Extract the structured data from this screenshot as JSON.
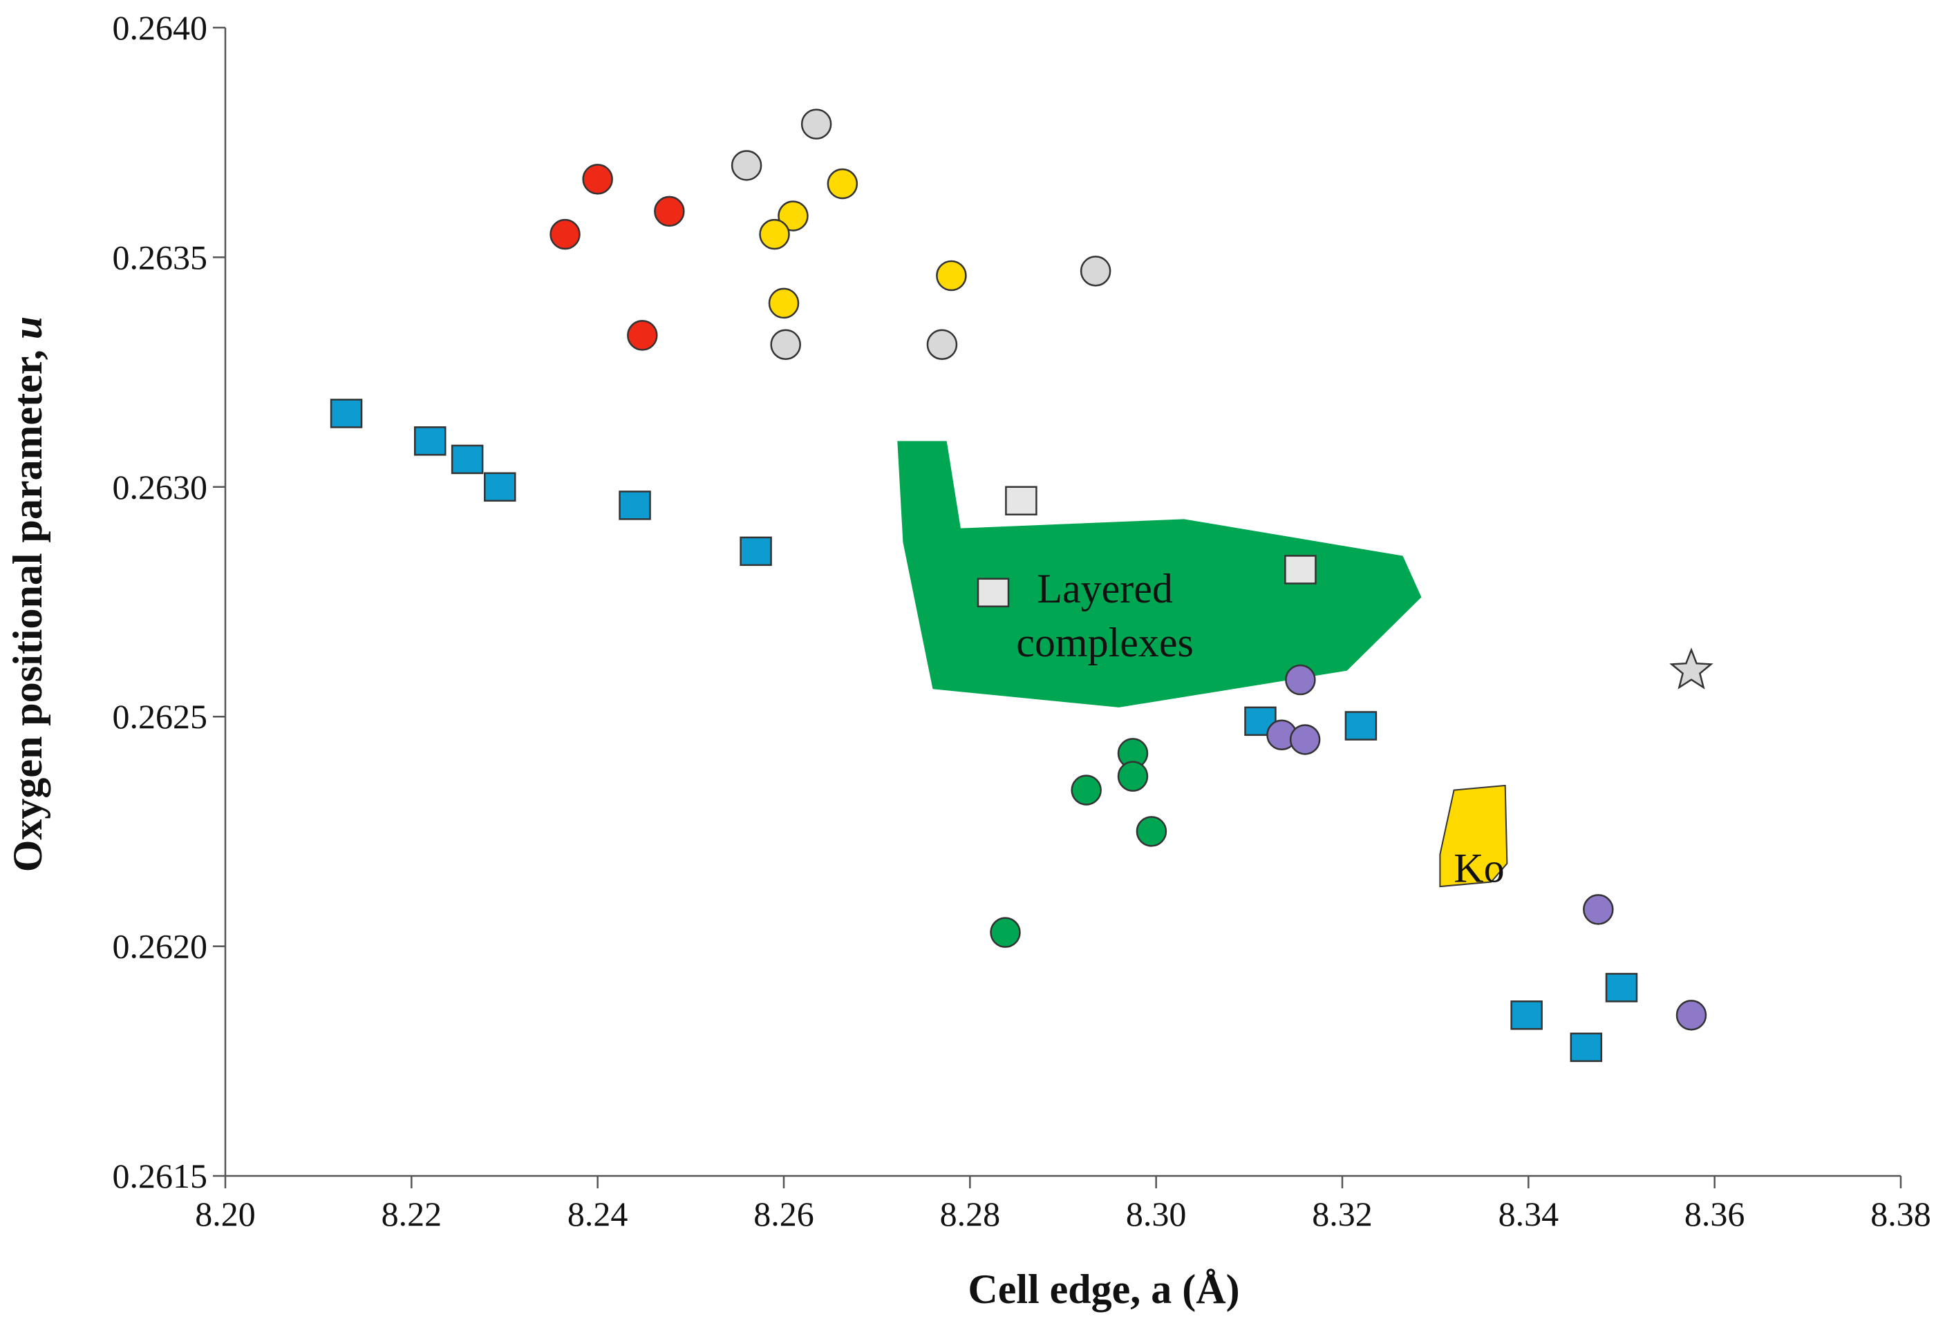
{
  "chart_data": {
    "type": "scatter",
    "title": "",
    "xlabel": "Cell edge, a (Å)",
    "ylabel_prefix": "Oxygen positional parameter, ",
    "ylabel_var": "u",
    "xlim": [
      8.2,
      8.38
    ],
    "ylim": [
      0.2615,
      0.264
    ],
    "xticks": [
      8.2,
      8.22,
      8.24,
      8.26,
      8.28,
      8.3,
      8.32,
      8.34,
      8.36,
      8.38
    ],
    "xtick_labels": [
      "8.20",
      "8.22",
      "8.24",
      "8.26",
      "8.28",
      "8.30",
      "8.32",
      "8.34",
      "8.36",
      "8.38"
    ],
    "yticks": [
      0.2615,
      0.262,
      0.2625,
      0.263,
      0.2635,
      0.264
    ],
    "ytick_labels": [
      "0.2615",
      "0.2620",
      "0.2625",
      "0.2630",
      "0.2635",
      "0.2640"
    ],
    "grid": false,
    "colors": {
      "red": "#ee2a16",
      "gray": "#d8d8d8",
      "yellow": "#ffda00",
      "blue": "#0e9bd0",
      "green": "#00a651",
      "purple": "#8e78c8",
      "lightgray_square": "#e6e6e6",
      "axis": "#555555"
    },
    "series": [
      {
        "name": "red-circles",
        "marker": "circle",
        "color": "#ee2a16",
        "points": [
          {
            "x": 8.2365,
            "y": 0.26355
          },
          {
            "x": 8.24,
            "y": 0.26367
          },
          {
            "x": 8.2477,
            "y": 0.2636
          },
          {
            "x": 8.2448,
            "y": 0.26333
          }
        ]
      },
      {
        "name": "gray-circles",
        "marker": "circle",
        "color": "#d8d8d8",
        "points": [
          {
            "x": 8.2635,
            "y": 0.26379
          },
          {
            "x": 8.256,
            "y": 0.2637
          },
          {
            "x": 8.2935,
            "y": 0.26347
          },
          {
            "x": 8.2602,
            "y": 0.26331
          },
          {
            "x": 8.277,
            "y": 0.26331
          }
        ]
      },
      {
        "name": "yellow-circles",
        "marker": "circle",
        "color": "#ffda00",
        "points": [
          {
            "x": 8.2663,
            "y": 0.26366
          },
          {
            "x": 8.261,
            "y": 0.26359
          },
          {
            "x": 8.259,
            "y": 0.26355
          },
          {
            "x": 8.278,
            "y": 0.26346
          },
          {
            "x": 8.26,
            "y": 0.2634
          }
        ]
      },
      {
        "name": "blue-squares",
        "marker": "square",
        "color": "#0e9bd0",
        "points": [
          {
            "x": 8.213,
            "y": 0.26316
          },
          {
            "x": 8.222,
            "y": 0.2631
          },
          {
            "x": 8.226,
            "y": 0.26306
          },
          {
            "x": 8.2295,
            "y": 0.263
          },
          {
            "x": 8.244,
            "y": 0.26296
          },
          {
            "x": 8.257,
            "y": 0.26286
          },
          {
            "x": 8.3112,
            "y": 0.26249
          },
          {
            "x": 8.322,
            "y": 0.26248
          },
          {
            "x": 8.3398,
            "y": 0.26185
          },
          {
            "x": 8.35,
            "y": 0.26191
          },
          {
            "x": 8.3462,
            "y": 0.26178
          }
        ]
      },
      {
        "name": "lightgray-squares",
        "marker": "square",
        "color": "#e6e6e6",
        "points": [
          {
            "x": 8.2855,
            "y": 0.26297
          },
          {
            "x": 8.2825,
            "y": 0.26277
          },
          {
            "x": 8.3155,
            "y": 0.26282
          }
        ]
      },
      {
        "name": "purple-circles",
        "marker": "circle",
        "color": "#8e78c8",
        "points": [
          {
            "x": 8.3155,
            "y": 0.26258
          },
          {
            "x": 8.3135,
            "y": 0.26246
          },
          {
            "x": 8.316,
            "y": 0.26245
          },
          {
            "x": 8.3475,
            "y": 0.26208
          },
          {
            "x": 8.3575,
            "y": 0.26185
          }
        ]
      },
      {
        "name": "green-circles",
        "marker": "circle",
        "color": "#00a651",
        "points": [
          {
            "x": 8.2975,
            "y": 0.26242
          },
          {
            "x": 8.2975,
            "y": 0.26237
          },
          {
            "x": 8.2925,
            "y": 0.26234
          },
          {
            "x": 8.2995,
            "y": 0.26225
          },
          {
            "x": 8.2838,
            "y": 0.26203
          }
        ]
      },
      {
        "name": "gray-star",
        "marker": "star",
        "color": "#d8d8d8",
        "points": [
          {
            "x": 8.3575,
            "y": 0.2626
          }
        ]
      }
    ],
    "regions": [
      {
        "name": "layered-complexes",
        "label_lines": [
          "Layered",
          "complexes"
        ],
        "label_at": {
          "x": 8.2945,
          "y": 0.26272
        },
        "color": "#00a651",
        "polygon": [
          [
            8.2722,
            0.2631
          ],
          [
            8.2775,
            0.2631
          ],
          [
            8.279,
            0.26291
          ],
          [
            8.303,
            0.26293
          ],
          [
            8.3265,
            0.26285
          ],
          [
            8.3285,
            0.26276
          ],
          [
            8.3205,
            0.2626
          ],
          [
            8.296,
            0.26252
          ],
          [
            8.276,
            0.26256
          ],
          [
            8.2728,
            0.26288
          ]
        ]
      },
      {
        "name": "ko",
        "label_lines": [
          "Ko"
        ],
        "label_at": {
          "x": 8.3347,
          "y": 0.26217
        },
        "color": "#ffda00",
        "polygon": [
          [
            8.332,
            0.26234
          ],
          [
            8.3375,
            0.26235
          ],
          [
            8.3377,
            0.26218
          ],
          [
            8.336,
            0.26214
          ],
          [
            8.3305,
            0.26213
          ],
          [
            8.3305,
            0.2622
          ]
        ]
      }
    ]
  }
}
